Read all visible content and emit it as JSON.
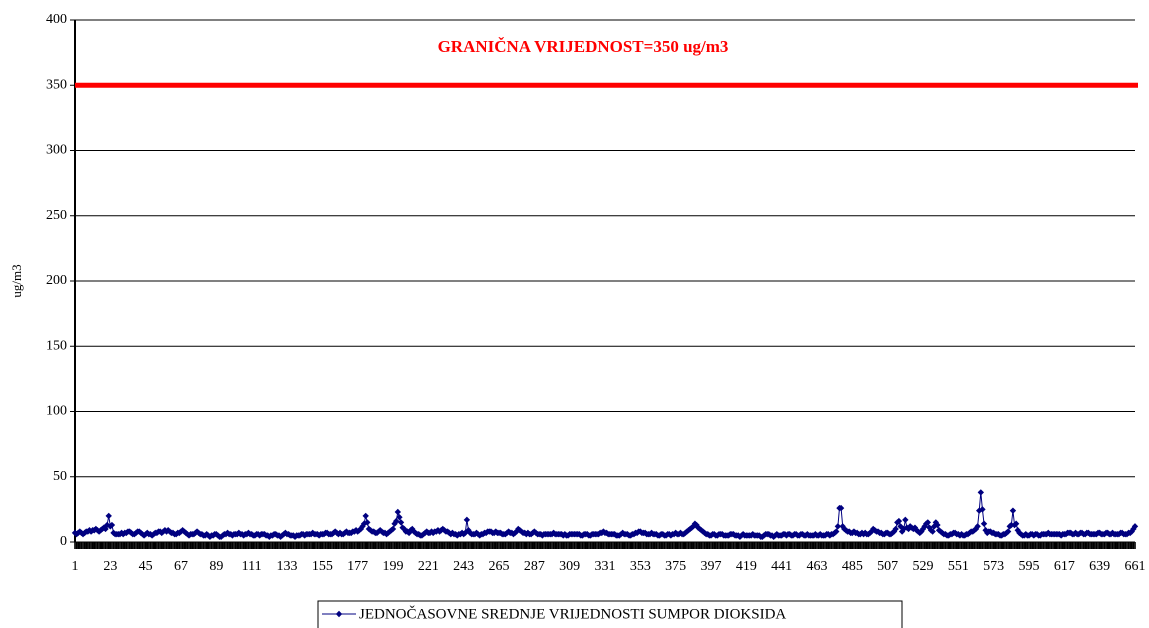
{
  "chart_data": {
    "type": "line",
    "y_label": "ug/m3",
    "threshold": {
      "value": 350,
      "label": "GRANIČNA VRIJEDNOST=350 ug/m3",
      "color": "#ff0000"
    },
    "ylim": [
      0,
      400
    ],
    "yticks": [
      0,
      50,
      100,
      150,
      200,
      250,
      300,
      350,
      400
    ],
    "grid": true,
    "xlim": [
      1,
      661
    ],
    "xticks": [
      1,
      23,
      45,
      67,
      89,
      111,
      133,
      155,
      177,
      199,
      221,
      243,
      265,
      287,
      309,
      331,
      353,
      375,
      397,
      419,
      441,
      463,
      485,
      507,
      529,
      551,
      573,
      595,
      617,
      639,
      661
    ],
    "legend": "bottom",
    "x": [
      1,
      2,
      3,
      4,
      5,
      6,
      7,
      8,
      9,
      10,
      11,
      12,
      13,
      14,
      15,
      16,
      17,
      18,
      19,
      20,
      21,
      22,
      23,
      24,
      25,
      26,
      27,
      28,
      29,
      30,
      31,
      32,
      33,
      34,
      35,
      36,
      37,
      38,
      39,
      40,
      41,
      42,
      43,
      44,
      45,
      46,
      47,
      48,
      49,
      50,
      51,
      52,
      53,
      54,
      55,
      56,
      57,
      58,
      59,
      60,
      61,
      62,
      63,
      64,
      65,
      66,
      67,
      68,
      69,
      70,
      71,
      72,
      73,
      74,
      75,
      76,
      77,
      78,
      79,
      80,
      81,
      82,
      83,
      84,
      85,
      86,
      87,
      88,
      89,
      90,
      91,
      92,
      93,
      94,
      95,
      96,
      97,
      98,
      99,
      100,
      101,
      102,
      103,
      104,
      105,
      106,
      107,
      108,
      109,
      110,
      111,
      112,
      113,
      114,
      115,
      116,
      117,
      118,
      119,
      120,
      121,
      122,
      123,
      124,
      125,
      126,
      127,
      128,
      129,
      130,
      131,
      132,
      133,
      134,
      135,
      136,
      137,
      138,
      139,
      140,
      141,
      142,
      143,
      144,
      145,
      146,
      147,
      148,
      149,
      150,
      151,
      152,
      153,
      154,
      155,
      156,
      157,
      158,
      159,
      160,
      161,
      162,
      163,
      164,
      165,
      166,
      167,
      168,
      169,
      170,
      171,
      172,
      173,
      174,
      175,
      176,
      177,
      178,
      179,
      180,
      181,
      182,
      183,
      184,
      185,
      186,
      187,
      188,
      189,
      190,
      191,
      192,
      193,
      194,
      195,
      196,
      197,
      198,
      199,
      200,
      201,
      202,
      203,
      204,
      205,
      206,
      207,
      208,
      209,
      210,
      211,
      212,
      213,
      214,
      215,
      216,
      217,
      218,
      219,
      220,
      221,
      222,
      223,
      224,
      225,
      226,
      227,
      228,
      229,
      230,
      231,
      232,
      233,
      234,
      235,
      236,
      237,
      238,
      239,
      240,
      241,
      242,
      243,
      244,
      245,
      246,
      247,
      248,
      249,
      250,
      251,
      252,
      253,
      254,
      255,
      256,
      257,
      258,
      259,
      260,
      261,
      262,
      263,
      264,
      265,
      266,
      267,
      268,
      269,
      270,
      271,
      272,
      273,
      274,
      275,
      276,
      277,
      278,
      279,
      280,
      281,
      282,
      283,
      284,
      285,
      286,
      287,
      288,
      289,
      290,
      291,
      292,
      293,
      294,
      295,
      296,
      297,
      298,
      299,
      300,
      301,
      302,
      303,
      304,
      305,
      306,
      307,
      308,
      309,
      310,
      311,
      312,
      313,
      314,
      315,
      316,
      317,
      318,
      319,
      320,
      321,
      322,
      323,
      324,
      325,
      326,
      327,
      328,
      329,
      330,
      331,
      332,
      333,
      334,
      335,
      336,
      337,
      338,
      339,
      340,
      341,
      342,
      343,
      344,
      345,
      346,
      347,
      348,
      349,
      350,
      351,
      352,
      353,
      354,
      355,
      356,
      357,
      358,
      359,
      360,
      361,
      362,
      363,
      364,
      365,
      366,
      367,
      368,
      369,
      370,
      371,
      372,
      373,
      374,
      375,
      376,
      377,
      378,
      379,
      380,
      381,
      382,
      383,
      384,
      385,
      386,
      387,
      388,
      389,
      390,
      391,
      392,
      393,
      394,
      395,
      396,
      397,
      398,
      399,
      400,
      401,
      402,
      403,
      404,
      405,
      406,
      407,
      408,
      409,
      410,
      411,
      412,
      413,
      414,
      415,
      416,
      417,
      418,
      419,
      420,
      421,
      422,
      423,
      424,
      425,
      426,
      427,
      428,
      429,
      430,
      431,
      432,
      433,
      434,
      435,
      436,
      437,
      438,
      439,
      440,
      441,
      442,
      443,
      444,
      445,
      446,
      447,
      448,
      449,
      450,
      451,
      452,
      453,
      454,
      455,
      456,
      457,
      458,
      459,
      460,
      461,
      462,
      463,
      464,
      465,
      466,
      467,
      468,
      469,
      470,
      471,
      472,
      473,
      474,
      475,
      476,
      477,
      478,
      479,
      480,
      481,
      482,
      483,
      484,
      485,
      486,
      487,
      488,
      489,
      490,
      491,
      492,
      493,
      494,
      495,
      496,
      497,
      498,
      499,
      500,
      501,
      502,
      503,
      504,
      505,
      506,
      507,
      508,
      509,
      510,
      511,
      512,
      513,
      514,
      515,
      516,
      517,
      518,
      519,
      520,
      521,
      522,
      523,
      524,
      525,
      526,
      527,
      528,
      529,
      530,
      531,
      532,
      533,
      534,
      535,
      536,
      537,
      538,
      539,
      540,
      541,
      542,
      543,
      544,
      545,
      546,
      547,
      548,
      549,
      550,
      551,
      552,
      553,
      554,
      555,
      556,
      557,
      558,
      559,
      560,
      561,
      562,
      563,
      564,
      565,
      566,
      567,
      568,
      569,
      570,
      571,
      572,
      573,
      574,
      575,
      576,
      577,
      578,
      579,
      580,
      581,
      582,
      583,
      584,
      585,
      586,
      587,
      588,
      589,
      590,
      591,
      592,
      593,
      594,
      595,
      596,
      597,
      598,
      599,
      600,
      601,
      602,
      603,
      604,
      605,
      606,
      607,
      608,
      609,
      610,
      611,
      612,
      613,
      614,
      615,
      616,
      617,
      618,
      619,
      620,
      621,
      622,
      623,
      624,
      625,
      626,
      627,
      628,
      629,
      630,
      631,
      632,
      633,
      634,
      635,
      636,
      637,
      638,
      639,
      640,
      641,
      642,
      643,
      644,
      645,
      646,
      647,
      648,
      649,
      650,
      651,
      652,
      653,
      654,
      655,
      656,
      657,
      658,
      659,
      660,
      661
    ],
    "series": [
      {
        "name": "JEDNOČASOVNE SREDNJE VRIJEDNOSTI SUMPOR DIOKSIDA",
        "color": "#000080",
        "values": [
          7,
          6,
          7,
          8,
          7,
          6,
          7,
          8,
          8,
          9,
          8,
          9,
          9,
          10,
          9,
          8,
          9,
          10,
          11,
          10,
          13,
          20,
          12,
          13,
          7,
          6,
          6,
          6,
          6,
          7,
          6,
          7,
          7,
          8,
          8,
          7,
          6,
          6,
          7,
          8,
          8,
          7,
          6,
          5,
          6,
          7,
          6,
          6,
          5,
          6,
          7,
          7,
          8,
          8,
          7,
          8,
          9,
          8,
          9,
          8,
          7,
          7,
          6,
          6,
          7,
          7,
          8,
          9,
          8,
          7,
          6,
          5,
          6,
          6,
          6,
          7,
          8,
          7,
          6,
          6,
          5,
          5,
          6,
          5,
          4,
          5,
          5,
          6,
          6,
          5,
          4,
          4,
          5,
          6,
          6,
          7,
          6,
          6,
          5,
          6,
          6,
          6,
          7,
          6,
          6,
          5,
          6,
          6,
          7,
          6,
          6,
          5,
          5,
          6,
          6,
          5,
          6,
          6,
          6,
          5,
          5,
          4,
          5,
          5,
          6,
          6,
          5,
          5,
          4,
          5,
          6,
          7,
          6,
          6,
          5,
          5,
          5,
          4,
          5,
          5,
          5,
          6,
          6,
          5,
          6,
          6,
          6,
          6,
          7,
          6,
          6,
          6,
          5,
          6,
          6,
          6,
          7,
          7,
          6,
          6,
          6,
          7,
          8,
          7,
          6,
          7,
          6,
          6,
          7,
          8,
          7,
          7,
          7,
          8,
          8,
          9,
          8,
          9,
          10,
          12,
          14,
          20,
          15,
          10,
          9,
          8,
          8,
          7,
          7,
          8,
          9,
          8,
          7,
          7,
          6,
          7,
          8,
          9,
          10,
          14,
          16,
          23,
          19,
          15,
          11,
          10,
          8,
          8,
          7,
          9,
          10,
          8,
          7,
          6,
          6,
          5,
          5,
          6,
          7,
          8,
          7,
          7,
          8,
          7,
          8,
          8,
          9,
          8,
          9,
          10,
          9,
          8,
          8,
          7,
          6,
          7,
          6,
          6,
          5,
          6,
          6,
          7,
          6,
          7,
          17,
          9,
          7,
          6,
          6,
          6,
          7,
          6,
          5,
          6,
          6,
          7,
          7,
          8,
          8,
          8,
          7,
          7,
          8,
          7,
          7,
          7,
          6,
          6,
          6,
          7,
          8,
          7,
          7,
          6,
          7,
          8,
          10,
          9,
          8,
          7,
          7,
          6,
          7,
          6,
          6,
          7,
          8,
          7,
          6,
          6,
          6,
          5,
          6,
          6,
          6,
          6,
          6,
          6,
          7,
          6,
          6,
          6,
          6,
          6,
          5,
          6,
          5,
          5,
          6,
          6,
          6,
          6,
          6,
          6,
          6,
          5,
          5,
          6,
          6,
          6,
          5,
          5,
          6,
          6,
          6,
          6,
          6,
          7,
          7,
          8,
          7,
          7,
          6,
          6,
          6,
          6,
          6,
          5,
          5,
          5,
          6,
          7,
          6,
          6,
          6,
          5,
          5,
          6,
          6,
          7,
          7,
          8,
          8,
          7,
          7,
          7,
          6,
          6,
          6,
          7,
          6,
          6,
          6,
          5,
          5,
          6,
          6,
          5,
          5,
          6,
          6,
          5,
          6,
          6,
          7,
          6,
          6,
          7,
          6,
          6,
          7,
          8,
          9,
          10,
          11,
          12,
          14,
          13,
          11,
          10,
          9,
          8,
          7,
          6,
          6,
          5,
          5,
          6,
          6,
          5,
          5,
          6,
          6,
          6,
          5,
          5,
          5,
          5,
          6,
          6,
          6,
          5,
          5,
          5,
          4,
          5,
          6,
          5,
          5,
          5,
          5,
          5,
          6,
          5,
          5,
          5,
          5,
          4,
          4,
          5,
          6,
          6,
          6,
          5,
          5,
          4,
          5,
          6,
          5,
          5,
          5,
          6,
          6,
          5,
          6,
          6,
          5,
          5,
          6,
          6,
          5,
          5,
          6,
          6,
          5,
          5,
          6,
          5,
          5,
          5,
          5,
          6,
          5,
          5,
          6,
          5,
          5,
          5,
          6,
          6,
          5,
          6,
          6,
          7,
          8,
          12,
          26,
          26,
          12,
          10,
          9,
          8,
          8,
          7,
          7,
          8,
          7,
          7,
          6,
          6,
          7,
          6,
          7,
          6,
          6,
          7,
          8,
          10,
          9,
          8,
          8,
          7,
          7,
          6,
          6,
          7,
          7,
          6,
          6,
          7,
          8,
          10,
          15,
          16,
          12,
          8,
          10,
          17,
          11,
          10,
          12,
          11,
          10,
          11,
          9,
          8,
          7,
          8,
          10,
          12,
          14,
          15,
          11,
          9,
          8,
          12,
          15,
          13,
          9,
          8,
          7,
          6,
          6,
          5,
          5,
          6,
          6,
          7,
          7,
          6,
          6,
          5,
          6,
          5,
          5,
          6,
          6,
          7,
          8,
          8,
          9,
          10,
          12,
          24,
          38,
          25,
          14,
          9,
          7,
          8,
          8,
          7,
          7,
          6,
          6,
          6,
          5,
          5,
          6,
          6,
          7,
          8,
          12,
          13,
          24,
          13,
          14,
          9,
          7,
          6,
          5,
          5,
          6,
          5,
          5,
          6,
          6,
          5,
          6,
          6,
          5,
          5,
          6,
          6,
          6,
          6,
          7,
          6,
          6,
          6,
          6,
          6,
          6,
          6,
          5,
          6,
          6,
          6,
          7,
          7,
          7,
          6,
          6,
          7,
          6,
          6,
          7,
          7,
          6,
          6,
          7,
          7,
          6,
          6,
          6,
          6,
          6,
          7,
          7,
          6,
          6,
          6,
          7,
          7,
          6,
          6,
          7,
          6,
          6,
          6,
          6,
          7,
          7,
          6,
          6,
          6,
          7,
          7,
          8,
          10,
          12
        ]
      }
    ]
  }
}
